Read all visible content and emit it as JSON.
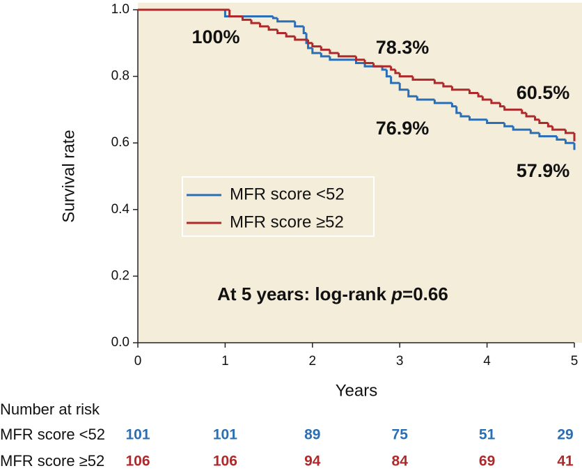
{
  "chart_data": {
    "type": "step",
    "xlabel": "Years",
    "ylabel": "Survival rate",
    "xlim": [
      0,
      5
    ],
    "xticks": [
      0,
      1,
      2,
      3,
      4,
      5
    ],
    "ylim": [
      0,
      1
    ],
    "yticks": [
      {
        "value": 0,
        "label": "0.0"
      },
      {
        "value": 0.2,
        "label": "0.2"
      },
      {
        "value": 0.4,
        "label": "0.4"
      },
      {
        "value": 0.6,
        "label": "0.6"
      },
      {
        "value": 0.8,
        "label": "0.8"
      },
      {
        "value": 1,
        "label": "1.0"
      }
    ],
    "background": "#f3edda",
    "series": [
      {
        "name": "MFR score <52",
        "color": "#2a6fb5",
        "x": [
          0,
          1.0,
          1.55,
          1.6,
          1.8,
          1.9,
          1.93,
          1.95,
          2.0,
          2.1,
          2.2,
          2.5,
          2.6,
          2.8,
          2.85,
          2.9,
          3.0,
          3.1,
          3.2,
          3.4,
          3.6,
          3.65,
          3.7,
          3.8,
          4.0,
          4.2,
          4.3,
          4.5,
          4.6,
          4.8,
          4.9,
          5.0
        ],
        "values": [
          1.0,
          0.98,
          0.975,
          0.965,
          0.95,
          0.93,
          0.9,
          0.885,
          0.87,
          0.86,
          0.85,
          0.84,
          0.83,
          0.82,
          0.8,
          0.78,
          0.76,
          0.74,
          0.73,
          0.72,
          0.71,
          0.69,
          0.68,
          0.67,
          0.66,
          0.65,
          0.64,
          0.63,
          0.62,
          0.61,
          0.6,
          0.579
        ]
      },
      {
        "name": "MFR score ≥52",
        "color": "#b0292a",
        "x": [
          0,
          1.05,
          1.2,
          1.3,
          1.4,
          1.5,
          1.6,
          1.7,
          1.8,
          1.95,
          2.0,
          2.1,
          2.2,
          2.3,
          2.5,
          2.6,
          2.7,
          2.9,
          2.95,
          3.0,
          3.15,
          3.4,
          3.5,
          3.6,
          3.8,
          3.9,
          3.95,
          4.05,
          4.15,
          4.2,
          4.4,
          4.45,
          4.55,
          4.6,
          4.7,
          4.75,
          4.9,
          5.0
        ],
        "values": [
          1.0,
          0.98,
          0.97,
          0.96,
          0.95,
          0.94,
          0.93,
          0.92,
          0.91,
          0.9,
          0.89,
          0.88,
          0.87,
          0.86,
          0.85,
          0.84,
          0.83,
          0.82,
          0.81,
          0.8,
          0.79,
          0.78,
          0.77,
          0.76,
          0.75,
          0.74,
          0.73,
          0.72,
          0.71,
          0.7,
          0.69,
          0.68,
          0.67,
          0.66,
          0.65,
          0.64,
          0.63,
          0.605
        ]
      }
    ],
    "annotations": [
      "100%",
      "78.3%",
      "76.9%",
      "60.5%",
      "57.9%"
    ],
    "logrank": {
      "prefix": "At 5 years: log-rank ",
      "italic": "p",
      "suffix": "=0.66"
    },
    "risk_table": {
      "title": "Number at risk",
      "rows": [
        {
          "label": "MFR score <52",
          "color": "#2a6fb5",
          "values": [
            101,
            101,
            89,
            75,
            51,
            29
          ]
        },
        {
          "label": "MFR score ≥52",
          "color": "#b0292a",
          "values": [
            106,
            106,
            94,
            84,
            69,
            41
          ]
        }
      ]
    }
  }
}
